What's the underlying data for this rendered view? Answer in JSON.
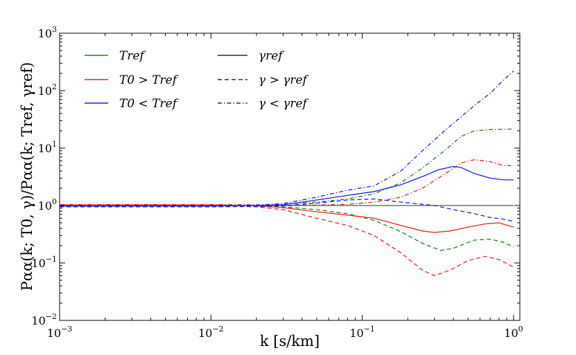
{
  "chart_data": {
    "type": "line",
    "xscale": "log",
    "yscale": "log",
    "xlim": [
      0.001,
      1.1
    ],
    "ylim": [
      0.01,
      1000
    ],
    "xlabel": "k [s/km]",
    "ylabel": "Pαα(k; T0, γ)/Pαα(k; Tref, γref)",
    "x_ticks": [
      {
        "value": 0.001,
        "base": "10",
        "exp": "−3"
      },
      {
        "value": 0.01,
        "base": "10",
        "exp": "−2"
      },
      {
        "value": 0.1,
        "base": "10",
        "exp": "−1"
      },
      {
        "value": 1,
        "base": "10",
        "exp": "0"
      }
    ],
    "y_ticks": [
      {
        "value": 0.01,
        "base": "10",
        "exp": "−2"
      },
      {
        "value": 0.1,
        "base": "10",
        "exp": "−1"
      },
      {
        "value": 1,
        "base": "10",
        "exp": "0"
      },
      {
        "value": 10,
        "base": "10",
        "exp": "1"
      },
      {
        "value": 100,
        "base": "10",
        "exp": "2"
      },
      {
        "value": 1000,
        "base": "10",
        "exp": "3"
      }
    ],
    "colors": {
      "Tref": "#1a7f1a",
      "T0>Tref": "#e8201e",
      "T0<Tref": "#1c1ce6",
      "axis": "#000000"
    },
    "legend_colors": [
      {
        "label": "Tref",
        "color": "#1a7f1a"
      },
      {
        "label": "T0 > Tref",
        "color": "#e8201e"
      },
      {
        "label": "T0 < Tref",
        "color": "#1c1ce6"
      }
    ],
    "legend_styles": [
      {
        "label": "γref",
        "style": "solid"
      },
      {
        "label": "γ > γref",
        "style": "dashed"
      },
      {
        "label": "γ < γref",
        "style": "dashdot"
      }
    ],
    "legend_location": "top-left",
    "series": [
      {
        "name": "Tref, γref",
        "color": "Tref",
        "style": "solid",
        "points": [
          [
            0.001,
            1.0
          ],
          [
            1.0,
            1.0
          ]
        ]
      },
      {
        "name": "Tref, γ > γref",
        "color": "Tref",
        "style": "dashed",
        "points": [
          [
            0.001,
            0.97
          ],
          [
            0.01,
            0.97
          ],
          [
            0.02,
            0.965
          ],
          [
            0.03,
            0.95
          ],
          [
            0.05,
            0.85
          ],
          [
            0.08,
            0.72
          ],
          [
            0.12,
            0.55
          ],
          [
            0.18,
            0.35
          ],
          [
            0.25,
            0.22
          ],
          [
            0.33,
            0.165
          ],
          [
            0.4,
            0.18
          ],
          [
            0.55,
            0.25
          ],
          [
            0.7,
            0.26
          ],
          [
            0.85,
            0.23
          ],
          [
            1.0,
            0.19
          ]
        ]
      },
      {
        "name": "Tref, γ < γref",
        "color": "Tref",
        "style": "dashdot",
        "points": [
          [
            0.001,
            1.01
          ],
          [
            0.01,
            1.01
          ],
          [
            0.02,
            1.02
          ],
          [
            0.03,
            1.05
          ],
          [
            0.05,
            1.15
          ],
          [
            0.08,
            1.3
          ],
          [
            0.12,
            1.6
          ],
          [
            0.18,
            2.5
          ],
          [
            0.25,
            4.5
          ],
          [
            0.35,
            9.0
          ],
          [
            0.45,
            16
          ],
          [
            0.55,
            20
          ],
          [
            0.7,
            21
          ],
          [
            1.0,
            21.5
          ]
        ]
      },
      {
        "name": "T0 > Tref, γref",
        "color": "T0>Tref",
        "style": "solid",
        "points": [
          [
            0.001,
            1.02
          ],
          [
            0.01,
            1.02
          ],
          [
            0.02,
            0.99
          ],
          [
            0.03,
            0.92
          ],
          [
            0.05,
            0.78
          ],
          [
            0.08,
            0.68
          ],
          [
            0.12,
            0.6
          ],
          [
            0.18,
            0.45
          ],
          [
            0.25,
            0.36
          ],
          [
            0.3,
            0.34
          ],
          [
            0.38,
            0.36
          ],
          [
            0.5,
            0.42
          ],
          [
            0.65,
            0.48
          ],
          [
            0.8,
            0.5
          ],
          [
            1.0,
            0.42
          ]
        ]
      },
      {
        "name": "T0 > Tref, γ > γref",
        "color": "T0>Tref",
        "style": "dashed",
        "points": [
          [
            0.001,
            1.0
          ],
          [
            0.01,
            1.0
          ],
          [
            0.02,
            0.95
          ],
          [
            0.03,
            0.85
          ],
          [
            0.05,
            0.6
          ],
          [
            0.08,
            0.45
          ],
          [
            0.12,
            0.3
          ],
          [
            0.18,
            0.15
          ],
          [
            0.25,
            0.075
          ],
          [
            0.3,
            0.06
          ],
          [
            0.38,
            0.075
          ],
          [
            0.5,
            0.11
          ],
          [
            0.65,
            0.13
          ],
          [
            0.8,
            0.115
          ],
          [
            1.0,
            0.085
          ]
        ]
      },
      {
        "name": "T0 > Tref, γ < γref",
        "color": "T0>Tref",
        "style": "dashdot",
        "points": [
          [
            0.001,
            1.04
          ],
          [
            0.01,
            1.04
          ],
          [
            0.02,
            1.03
          ],
          [
            0.03,
            1.01
          ],
          [
            0.05,
            1.02
          ],
          [
            0.08,
            1.05
          ],
          [
            0.12,
            1.15
          ],
          [
            0.18,
            1.4
          ],
          [
            0.25,
            2.0
          ],
          [
            0.35,
            3.5
          ],
          [
            0.45,
            5.5
          ],
          [
            0.55,
            6.3
          ],
          [
            0.7,
            5.8
          ],
          [
            0.85,
            5.0
          ],
          [
            1.0,
            4.9
          ]
        ]
      },
      {
        "name": "T0 < Tref, γref",
        "color": "T0<Tref",
        "style": "solid",
        "points": [
          [
            0.001,
            0.98
          ],
          [
            0.01,
            0.98
          ],
          [
            0.02,
            1.0
          ],
          [
            0.03,
            1.03
          ],
          [
            0.05,
            1.25
          ],
          [
            0.08,
            1.5
          ],
          [
            0.12,
            1.75
          ],
          [
            0.18,
            2.3
          ],
          [
            0.25,
            3.2
          ],
          [
            0.32,
            4.2
          ],
          [
            0.4,
            4.8
          ],
          [
            0.45,
            4.6
          ],
          [
            0.55,
            3.6
          ],
          [
            0.7,
            3.0
          ],
          [
            0.85,
            2.8
          ],
          [
            1.0,
            2.8
          ]
        ]
      },
      {
        "name": "T0 < Tref, γ > γref",
        "color": "T0<Tref",
        "style": "dashed",
        "points": [
          [
            0.001,
            0.95
          ],
          [
            0.01,
            0.95
          ],
          [
            0.02,
            0.96
          ],
          [
            0.03,
            0.99
          ],
          [
            0.05,
            1.1
          ],
          [
            0.08,
            1.25
          ],
          [
            0.12,
            1.3
          ],
          [
            0.18,
            1.15
          ],
          [
            0.25,
            1.05
          ],
          [
            0.3,
            1.0
          ],
          [
            0.4,
            0.85
          ],
          [
            0.55,
            0.72
          ],
          [
            0.7,
            0.62
          ],
          [
            0.85,
            0.58
          ],
          [
            1.0,
            0.53
          ]
        ]
      },
      {
        "name": "T0 < Tref, γ < γref",
        "color": "T0<Tref",
        "style": "dashdot",
        "points": [
          [
            0.001,
            1.0
          ],
          [
            0.01,
            1.0
          ],
          [
            0.02,
            1.02
          ],
          [
            0.03,
            1.08
          ],
          [
            0.05,
            1.4
          ],
          [
            0.08,
            1.85
          ],
          [
            0.12,
            2.2
          ],
          [
            0.18,
            4.0
          ],
          [
            0.25,
            9.0
          ],
          [
            0.35,
            20
          ],
          [
            0.45,
            35
          ],
          [
            0.55,
            55
          ],
          [
            0.7,
            90
          ],
          [
            0.85,
            150
          ],
          [
            1.0,
            220
          ]
        ]
      }
    ]
  }
}
